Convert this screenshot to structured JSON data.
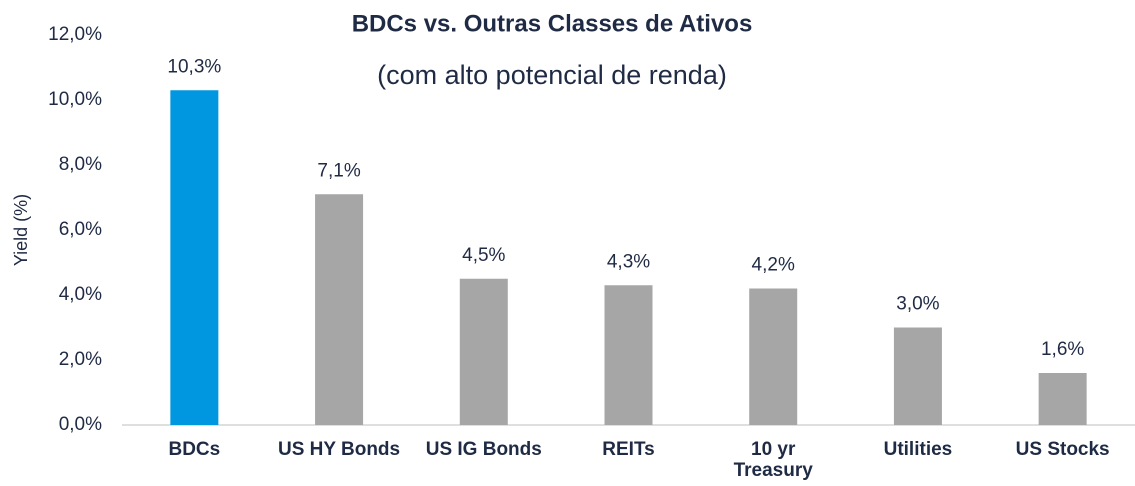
{
  "chart_data": {
    "type": "bar",
    "title": "BDCs vs. Outras Classes de Ativos",
    "subtitle": "(com alto potencial de renda)",
    "y_label": "Yield (%)",
    "categories": [
      "BDCs",
      "US HY Bonds",
      "US IG Bonds",
      "REITs",
      "10 yr Treasury",
      "Utilities",
      "US Stocks"
    ],
    "values": [
      10.3,
      7.1,
      4.5,
      4.3,
      4.2,
      3.0,
      1.6
    ],
    "value_labels": [
      "10,3%",
      "7,1%",
      "4,5%",
      "4,3%",
      "4,2%",
      "3,0%",
      "1,6%"
    ],
    "colors": [
      "#0096e0",
      "#a6a6a6",
      "#a6a6a6",
      "#a6a6a6",
      "#a6a6a6",
      "#a6a6a6",
      "#a6a6a6"
    ],
    "ylim": [
      0,
      12
    ],
    "yticks": [
      {
        "value": 0,
        "label": "0,0%"
      },
      {
        "value": 2,
        "label": "2,0%"
      },
      {
        "value": 4,
        "label": "4,0%"
      },
      {
        "value": 6,
        "label": "6,0%"
      },
      {
        "value": 8,
        "label": "8,0%"
      },
      {
        "value": 10,
        "label": "10,0%"
      },
      {
        "value": 12,
        "label": "12,0%"
      }
    ],
    "grid": false
  }
}
